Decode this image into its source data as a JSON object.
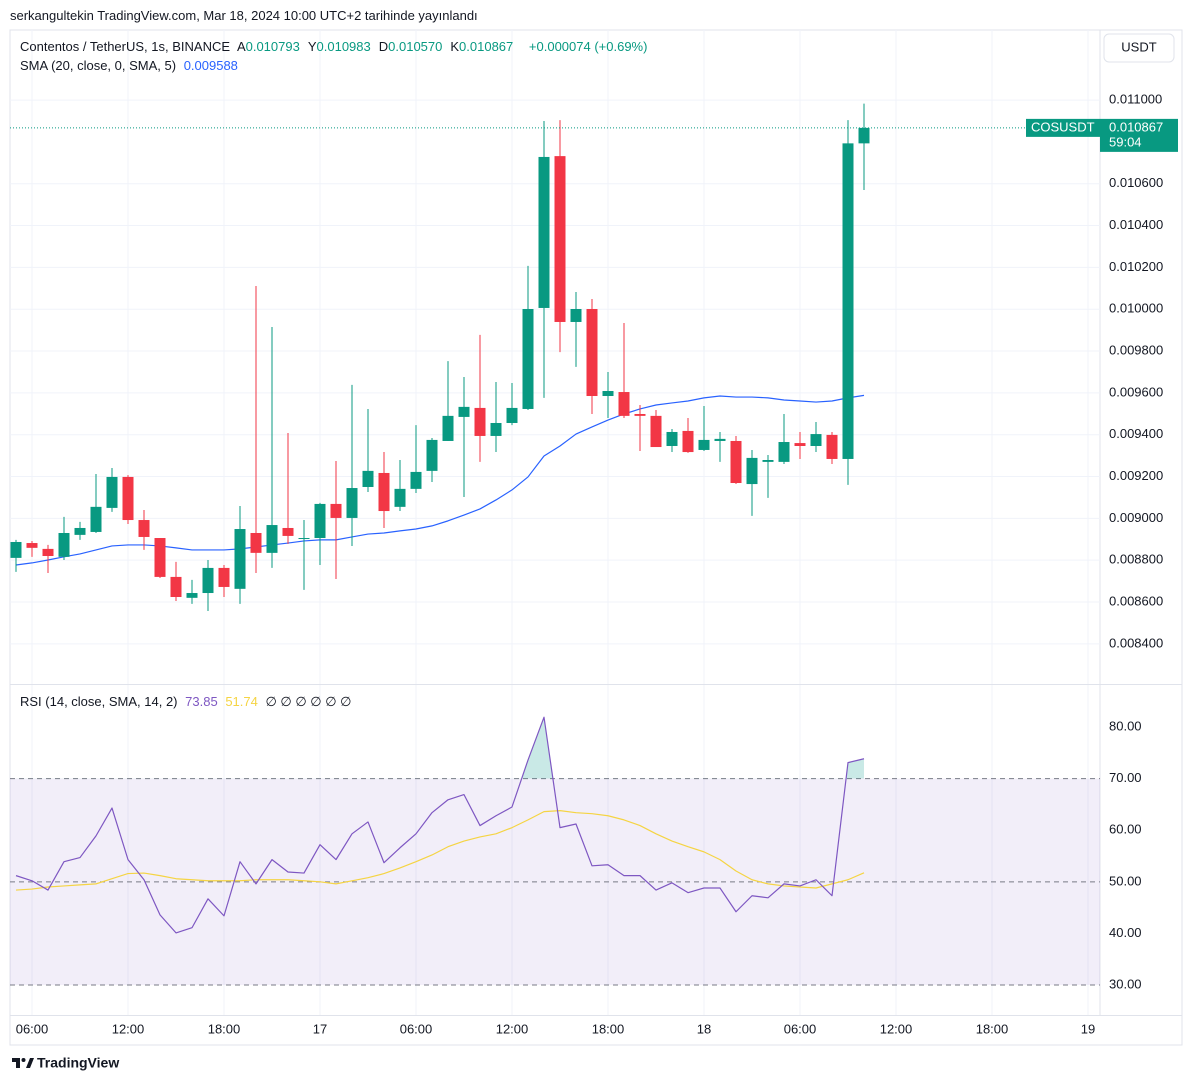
{
  "header": {
    "published": "serkangultekin TradingView.com, Mar 18, 2024 10:00 UTC+2 tarihinde yayınlandı"
  },
  "currency_button": "USDT",
  "legend": {
    "symbol": "Contentos / TetherUS, 1s, BINANCE",
    "ohlc": [
      {
        "label": "A",
        "value": "0.010793"
      },
      {
        "label": "Y",
        "value": "0.010983"
      },
      {
        "label": "D",
        "value": "0.010570"
      },
      {
        "label": "K",
        "value": "0.010867"
      }
    ],
    "change": "+0.000074 (+0.69%)"
  },
  "price_tag": {
    "symbol": "COSUSDT",
    "countdown": "59:04"
  },
  "footer": {
    "brand": "TradingView"
  },
  "chart_data": [
    {
      "type": "candlestick",
      "x": [
        0,
        1,
        2,
        3,
        4,
        5,
        6,
        7,
        8,
        9,
        10,
        11,
        12,
        13,
        14,
        15,
        16,
        17,
        18,
        19,
        20,
        21,
        22,
        23,
        24,
        25,
        26,
        27,
        28,
        29,
        30,
        31,
        32,
        33,
        34,
        35,
        36,
        37,
        38,
        39,
        40,
        41,
        42,
        43,
        44,
        45,
        46,
        47,
        48,
        49,
        50,
        51,
        52,
        53
      ],
      "open": [
        0.008811,
        0.008882,
        0.008854,
        0.008816,
        0.008921,
        0.008935,
        0.00905,
        0.009198,
        0.008992,
        0.008906,
        0.00872,
        0.00862,
        0.008643,
        0.008763,
        0.008663,
        0.00893,
        0.008835,
        0.008954,
        0.008902,
        0.008906,
        0.009069,
        0.009002,
        0.00915,
        0.009217,
        0.009055,
        0.009141,
        0.009227,
        0.00937,
        0.009485,
        0.009528,
        0.009394,
        0.009456,
        0.009523,
        0.010006,
        0.010732,
        0.009939,
        0.010001,
        0.009585,
        0.009604,
        0.009499,
        0.00949,
        0.009346,
        0.009418,
        0.009327,
        0.00937,
        0.00937,
        0.009164,
        0.00927,
        0.00927,
        0.00936,
        0.009346,
        0.009399,
        0.009284,
        0.010793
      ],
      "high": [
        0.008897,
        0.008892,
        0.008873,
        0.009007,
        0.008983,
        0.009212,
        0.009241,
        0.009207,
        0.00904,
        0.008906,
        0.008792,
        0.008706,
        0.008801,
        0.008777,
        0.009059,
        0.010111,
        0.009915,
        0.009408,
        0.008992,
        0.009074,
        0.009274,
        0.009638,
        0.009523,
        0.009317,
        0.009279,
        0.009446,
        0.009384,
        0.009752,
        0.009676,
        0.009877,
        0.009652,
        0.009647,
        0.010207,
        0.0109,
        0.010904,
        0.010082,
        0.010049,
        0.0097,
        0.009934,
        0.009542,
        0.009518,
        0.009427,
        0.00948,
        0.009537,
        0.009413,
        0.009394,
        0.009327,
        0.009303,
        0.009499,
        0.009413,
        0.009461,
        0.009413,
        0.010904,
        0.010983
      ],
      "low": [
        0.008744,
        0.008816,
        0.008739,
        0.008801,
        0.008897,
        0.00893,
        0.009031,
        0.008973,
        0.008849,
        0.008715,
        0.008605,
        0.008591,
        0.008557,
        0.008624,
        0.008591,
        0.008739,
        0.008763,
        0.008878,
        0.008658,
        0.008777,
        0.00871,
        0.008868,
        0.009126,
        0.008954,
        0.009035,
        0.009121,
        0.009174,
        0.00937,
        0.009102,
        0.00927,
        0.009317,
        0.009446,
        0.009518,
        0.009576,
        0.009795,
        0.009724,
        0.009499,
        0.00948,
        0.00948,
        0.009322,
        0.009341,
        0.009317,
        0.009313,
        0.009322,
        0.00927,
        0.009164,
        0.009012,
        0.009098,
        0.00926,
        0.009284,
        0.009317,
        0.00926,
        0.00916,
        0.01057
      ],
      "close": [
        0.008887,
        0.008859,
        0.00882,
        0.00893,
        0.008954,
        0.009055,
        0.009198,
        0.008992,
        0.008911,
        0.00872,
        0.008624,
        0.008643,
        0.008763,
        0.008672,
        0.008949,
        0.008835,
        0.008968,
        0.008916,
        0.008906,
        0.009069,
        0.009002,
        0.009145,
        0.009227,
        0.009035,
        0.009141,
        0.009222,
        0.009375,
        0.00949,
        0.009533,
        0.009394,
        0.009456,
        0.009528,
        0.010001,
        0.010728,
        0.009939,
        0.010001,
        0.009585,
        0.009609,
        0.00949,
        0.00949,
        0.009341,
        0.009413,
        0.009317,
        0.009375,
        0.00938,
        0.009169,
        0.009289,
        0.009279,
        0.009365,
        0.009346,
        0.009403,
        0.009284,
        0.010793,
        0.010867
      ],
      "up_color": "#089981",
      "down_color": "#f23645",
      "overlays": [
        {
          "name": "SMA (20, close, 0, SMA, 5)",
          "color": "#2962ff",
          "values": [
            0.008777,
            0.008787,
            0.008801,
            0.008816,
            0.00883,
            0.008849,
            0.008868,
            0.008873,
            0.008873,
            0.008868,
            0.008859,
            0.008849,
            0.008849,
            0.008849,
            0.008854,
            0.008863,
            0.008873,
            0.008882,
            0.008892,
            0.008897,
            0.008897,
            0.008911,
            0.008925,
            0.00893,
            0.00894,
            0.008949,
            0.008964,
            0.008988,
            0.009016,
            0.009045,
            0.009088,
            0.009136,
            0.009198,
            0.009298,
            0.009346,
            0.009403,
            0.009437,
            0.00947,
            0.009499,
            0.009523,
            0.009542,
            0.009552,
            0.009561,
            0.009576,
            0.009585,
            0.00958,
            0.00958,
            0.009576,
            0.009566,
            0.009561,
            0.009556,
            0.009561,
            0.009576,
            0.009588
          ]
        }
      ],
      "xlim": [
        -0.375,
        67.75
      ],
      "ylim": [
        0.008208,
        0.011335
      ],
      "yticks": [
        {
          "value": 0.0084,
          "label": "0.008400"
        },
        {
          "value": 0.0086,
          "label": "0.008600"
        },
        {
          "value": 0.0088,
          "label": "0.008800"
        },
        {
          "value": 0.009,
          "label": "0.009000"
        },
        {
          "value": 0.0092,
          "label": "0.009200"
        },
        {
          "value": 0.0094,
          "label": "0.009400"
        },
        {
          "value": 0.0096,
          "label": "0.009600"
        },
        {
          "value": 0.0098,
          "label": "0.009800"
        },
        {
          "value": 0.01,
          "label": "0.010000"
        },
        {
          "value": 0.0102,
          "label": "0.010200"
        },
        {
          "value": 0.0104,
          "label": "0.010400"
        },
        {
          "value": 0.0106,
          "label": "0.010600"
        },
        {
          "value": 0.011,
          "label": "0.011000"
        }
      ],
      "grid": true
    },
    {
      "type": "line",
      "x": [
        0,
        1,
        2,
        3,
        4,
        5,
        6,
        7,
        8,
        9,
        10,
        11,
        12,
        13,
        14,
        15,
        16,
        17,
        18,
        19,
        20,
        21,
        22,
        23,
        24,
        25,
        26,
        27,
        28,
        29,
        30,
        31,
        32,
        33,
        34,
        35,
        36,
        37,
        38,
        39,
        40,
        41,
        42,
        43,
        44,
        45,
        46,
        47,
        48,
        49,
        50,
        51,
        52,
        53
      ],
      "series": [
        {
          "name": "RSI (14, close, SMA, 14, 2)",
          "color": "#7e57c2",
          "values": [
            51.2,
            50.2,
            48.4,
            53.9,
            54.7,
            58.9,
            64.3,
            54.3,
            50.4,
            43.6,
            40.1,
            41.1,
            46.7,
            43.4,
            53.9,
            49.6,
            54.3,
            51.9,
            51.7,
            57.2,
            54.3,
            59.3,
            61.6,
            53.7,
            56.6,
            59.3,
            63.4,
            65.9,
            66.9,
            60.9,
            62.8,
            64.5,
            73.6,
            81.9,
            60.5,
            61.2,
            53.1,
            53.3,
            51.2,
            51.2,
            48.4,
            49.8,
            47.9,
            48.8,
            48.8,
            44.2,
            47.3,
            46.9,
            49.6,
            49.2,
            50.4,
            47.3,
            73.1,
            73.85
          ]
        },
        {
          "color": "#f5d443",
          "values": [
            48.4,
            48.6,
            49.0,
            49.2,
            49.4,
            49.6,
            50.6,
            51.6,
            51.7,
            51.2,
            50.6,
            50.4,
            50.2,
            50.2,
            50.2,
            50.4,
            50.4,
            50.4,
            50.2,
            50.0,
            49.6,
            50.2,
            50.8,
            51.6,
            52.7,
            53.9,
            55.2,
            56.8,
            57.9,
            58.7,
            59.3,
            60.5,
            62.0,
            63.6,
            63.8,
            63.4,
            63.2,
            62.8,
            62.0,
            60.9,
            59.3,
            57.9,
            56.8,
            55.8,
            54.3,
            52.1,
            50.4,
            49.6,
            49.2,
            49.0,
            48.8,
            49.6,
            50.4,
            51.74
          ]
        }
      ],
      "hidden_plots": "∅ ∅ ∅ ∅ ∅ ∅",
      "bands": {
        "upper": 70,
        "middle": 50,
        "lower": 30
      },
      "band_color": "#7e57c2",
      "overbought_color": "#26a69a",
      "xlim": [
        -0.375,
        67.75
      ],
      "ylim": [
        24.19,
        88.14
      ],
      "yticks": [
        {
          "value": 30,
          "label": "30.00"
        },
        {
          "value": 40,
          "label": "40.00"
        },
        {
          "value": 50,
          "label": "50.00"
        },
        {
          "value": 60,
          "label": "60.00"
        },
        {
          "value": 70,
          "label": "70.00"
        },
        {
          "value": 80,
          "label": "80.00"
        }
      ],
      "xticks": [
        {
          "value": 1,
          "label": "06:00"
        },
        {
          "value": 7,
          "label": "12:00"
        },
        {
          "value": 13,
          "label": "18:00"
        },
        {
          "value": 19,
          "label": "17"
        },
        {
          "value": 25,
          "label": "06:00"
        },
        {
          "value": 31,
          "label": "12:00"
        },
        {
          "value": 37,
          "label": "18:00"
        },
        {
          "value": 43,
          "label": "18"
        },
        {
          "value": 49,
          "label": "06:00"
        },
        {
          "value": 55,
          "label": "12:00"
        },
        {
          "value": 61,
          "label": "18:00"
        },
        {
          "value": 67,
          "label": "19"
        }
      ]
    }
  ]
}
